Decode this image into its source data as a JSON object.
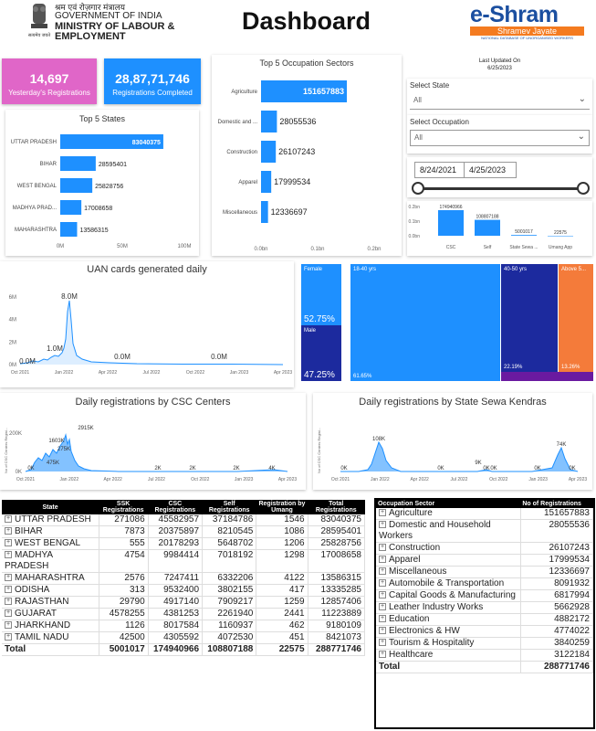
{
  "header": {
    "hindi_line": "श्रम एवं रोज़गार मंत्रालय",
    "gov_line": "GOVERNMENT OF INDIA",
    "ministry_line1": "MINISTRY OF LABOUR &",
    "ministry_line2": "EMPLOYMENT",
    "emblem_caption": "सत्यमेव जयते",
    "title": "Dashboard",
    "brand": "e-Shram",
    "brand_tagline": "Shramev Jayate",
    "brand_sub": "NATIONAL DATABASE OF UNORGANISED WORKERS"
  },
  "kpis": {
    "yesterday": {
      "value": "14,697",
      "label": "Yesterday's Registrations",
      "color": "#e066c8"
    },
    "completed": {
      "value": "28,87,71,746",
      "label": "Registrations Completed",
      "color": "#1e90ff"
    }
  },
  "updated": {
    "label": "Last Updated On",
    "date": "6/25/2023"
  },
  "filters": {
    "state_label": "Select State",
    "state_value": "All",
    "occupation_label": "Select Occupation",
    "occupation_value": "All",
    "date_from": "8/24/2021",
    "date_to": "4/25/2023"
  },
  "colors": {
    "blue": "#1e90ff",
    "dark_blue": "#1c2a9e",
    "navy": "#1a1a8c",
    "orange": "#f47b3a",
    "purple": "#6a1aa0"
  },
  "top_states": {
    "title": "Top 5 States",
    "chart_data": {
      "type": "bar",
      "categories": [
        "UTTAR PRADESH",
        "BIHAR",
        "WEST BENGAL",
        "MADHYA PRADESH",
        "MAHARASHTRA"
      ],
      "labels": [
        "UTTAR PRADESH",
        "BIHAR",
        "WEST BENGAL",
        "MADHYA PRAD...",
        "MAHARASHTRA"
      ],
      "values": [
        83040375,
        28595401,
        25828756,
        17008658,
        13586315
      ],
      "value_labels": [
        "83040375",
        "28595401",
        "25828756",
        "17008658",
        "13586315"
      ],
      "xlim": [
        0,
        100000000
      ],
      "x_ticks": [
        "0M",
        "50M",
        "100M"
      ]
    }
  },
  "top_sectors": {
    "title": "Top 5 Occupation Sectors",
    "chart_data": {
      "type": "bar",
      "categories": [
        "Agriculture",
        "Domestic and Household Workers",
        "Construction",
        "Apparel",
        "Miscellaneous"
      ],
      "labels": [
        "Agriculture",
        "Domestic and ...",
        "Construction",
        "Apparel",
        "Miscellaneous"
      ],
      "values": [
        151657883,
        28055536,
        26107243,
        17999534,
        12336697
      ],
      "value_labels": [
        "151657883",
        "28055536",
        "26107243",
        "17999534",
        "12336697"
      ],
      "xlim": [
        0,
        200000000
      ],
      "x_ticks": [
        "0.0bn",
        "0.1bn",
        "0.2bn"
      ]
    }
  },
  "by_source": {
    "chart_data": {
      "type": "bar",
      "categories": [
        "CSC",
        "Self",
        "State Sewa ...",
        "Umang App"
      ],
      "values": [
        174940966,
        108807188,
        5001017,
        22575
      ],
      "value_labels": [
        "174940966",
        "108807188",
        "5001017",
        "22575"
      ],
      "ylim": [
        0,
        200000000
      ],
      "y_ticks": [
        "0.0bn",
        "0.1bn",
        "0.2bn"
      ]
    }
  },
  "uan": {
    "title": "UAN cards generated daily",
    "chart_data": {
      "type": "area",
      "y_ticks": [
        "0M",
        "2M",
        "4M",
        "6M"
      ],
      "x_ticks": [
        "Oct 2021",
        "Jan 2022",
        "Apr 2022",
        "Jul 2022",
        "Oct 2022",
        "Jan 2023",
        "Apr 2023"
      ],
      "annotations": [
        "0.0M",
        "8.0M",
        "1.0M",
        "0.0M",
        "0.0M"
      ],
      "ylim": [
        0,
        8000000
      ]
    }
  },
  "gender": {
    "chart_data": {
      "type": "bar",
      "categories": [
        "Female",
        "Male"
      ],
      "values": [
        52.75,
        47.25
      ],
      "value_labels": [
        "52.75%",
        "47.25%"
      ]
    }
  },
  "age": {
    "chart_data": {
      "type": "treemap",
      "categories": [
        "18-40 yrs",
        "40-50 yrs",
        "Above 5..."
      ],
      "values": [
        61.65,
        22.19,
        13.26
      ],
      "value_labels": [
        "61.65%",
        "22.19%",
        "13.26%"
      ]
    }
  },
  "csc_daily": {
    "title": "Daily registrations by CSC Centers",
    "y_axis_label": "No of CSC Centers Regist...",
    "chart_data": {
      "type": "area",
      "y_ticks": [
        "0K",
        "200K"
      ],
      "x_ticks": [
        "Oct 2021",
        "Jan 2022",
        "Apr 2022",
        "Jul 2022",
        "Oct 2022",
        "Jan 2023",
        "Apr 2023"
      ],
      "annotations": [
        "0K",
        "1603K",
        "275K",
        "475K",
        "2915K",
        "2K",
        "2K",
        "2K",
        "4K"
      ]
    }
  },
  "ssk_daily": {
    "title": "Daily registrations by State Sewa Kendras",
    "y_axis_label": "No of CSC Centers Regist...",
    "chart_data": {
      "type": "area",
      "x_ticks": [
        "Oct 2021",
        "Jan 2022",
        "Apr 2022",
        "Jul 2022",
        "Oct 2022",
        "Jan 2023",
        "Apr 2023"
      ],
      "annotations": [
        "0K",
        "108K",
        "0K",
        "0K",
        "9K",
        "0K",
        "0K",
        "74K",
        "0K"
      ]
    }
  },
  "state_table": {
    "headers": [
      "State",
      "SSK Registrations",
      "CSC Registrations",
      "Self Registrations",
      "Registration by Umang",
      "Total Registrations"
    ],
    "rows": [
      [
        "UTTAR PRADESH",
        "271086",
        "45582957",
        "37184786",
        "1546",
        "83040375"
      ],
      [
        "BIHAR",
        "7873",
        "20375897",
        "8210545",
        "1086",
        "28595401"
      ],
      [
        "WEST BENGAL",
        "555",
        "20178293",
        "5648702",
        "1206",
        "25828756"
      ],
      [
        "MADHYA PRADESH",
        "4754",
        "9984414",
        "7018192",
        "1298",
        "17008658"
      ],
      [
        "MAHARASHTRA",
        "2576",
        "7247411",
        "6332206",
        "4122",
        "13586315"
      ],
      [
        "ODISHA",
        "313",
        "9532400",
        "3802155",
        "417",
        "13335285"
      ],
      [
        "RAJASTHAN",
        "29790",
        "4917140",
        "7909217",
        "1259",
        "12857406"
      ],
      [
        "GUJARAT",
        "4578255",
        "4381253",
        "2261940",
        "2441",
        "11223889"
      ],
      [
        "JHARKHAND",
        "1126",
        "8017584",
        "1160937",
        "462",
        "9180109"
      ],
      [
        "TAMIL NADU",
        "42500",
        "4305592",
        "4072530",
        "451",
        "8421073"
      ]
    ],
    "total": [
      "Total",
      "5001017",
      "174940966",
      "108807188",
      "22575",
      "288771746"
    ]
  },
  "occupation_table": {
    "headers": [
      "Occupation Sector",
      "No of Registrations"
    ],
    "rows": [
      [
        "Agriculture",
        "151657883"
      ],
      [
        "Domestic and Household Workers",
        "28055536"
      ],
      [
        "Construction",
        "26107243"
      ],
      [
        "Apparel",
        "17999534"
      ],
      [
        "Miscellaneous",
        "12336697"
      ],
      [
        "Automobile & Transportation",
        "8091932"
      ],
      [
        "Capital Goods & Manufacturing",
        "6817994"
      ],
      [
        "Leather Industry Works",
        "5662928"
      ],
      [
        "Education",
        "4882172"
      ],
      [
        "Electronics & HW",
        "4774022"
      ],
      [
        "Tourism & Hospitality",
        "3840259"
      ],
      [
        "Healthcare",
        "3122184"
      ]
    ],
    "total": [
      "Total",
      "288771746"
    ]
  }
}
